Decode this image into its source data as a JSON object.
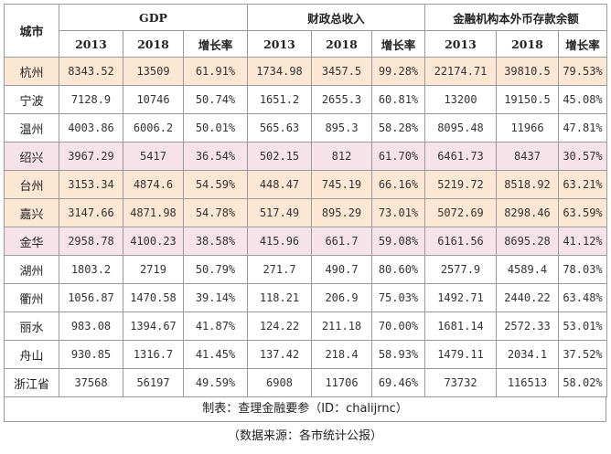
{
  "header": {
    "city": "城市",
    "groups": [
      "GDP",
      "财政总收入",
      "金融机构本外币存款余额"
    ],
    "subheaders": [
      "2013",
      "2018",
      "增长率",
      "2013",
      "2018",
      "增长率",
      "2013",
      "2018",
      "增长率"
    ]
  },
  "rows": [
    {
      "city": "杭州",
      "tint": "orange",
      "values": [
        "8343.52",
        "13509",
        "61.91%",
        "1734.98",
        "3457.5",
        "99.28%",
        "22174.71",
        "39810.5",
        "79.53%"
      ]
    },
    {
      "city": "宁波",
      "tint": "plain",
      "values": [
        "7128.9",
        "10746",
        "50.74%",
        "1651.2",
        "2655.3",
        "60.81%",
        "13200",
        "19150.5",
        "45.08%"
      ]
    },
    {
      "city": "温州",
      "tint": "plain",
      "values": [
        "4003.86",
        "6006.2",
        "50.01%",
        "565.63",
        "895.3",
        "58.28%",
        "8095.48",
        "11966",
        "47.81%"
      ]
    },
    {
      "city": "绍兴",
      "tint": "pink",
      "values": [
        "3967.29",
        "5417",
        "36.54%",
        "502.15",
        "812",
        "61.70%",
        "6461.73",
        "8437",
        "30.57%"
      ]
    },
    {
      "city": "台州",
      "tint": "orange",
      "values": [
        "3153.34",
        "4874.6",
        "54.59%",
        "448.47",
        "745.19",
        "66.16%",
        "5219.72",
        "8518.92",
        "63.21%"
      ]
    },
    {
      "city": "嘉兴",
      "tint": "orange",
      "values": [
        "3147.66",
        "4871.98",
        "54.78%",
        "517.49",
        "895.29",
        "73.01%",
        "5072.69",
        "8298.46",
        "63.59%"
      ]
    },
    {
      "city": "金华",
      "tint": "pink",
      "values": [
        "2958.78",
        "4100.23",
        "38.58%",
        "415.96",
        "661.7",
        "59.08%",
        "6161.56",
        "8695.28",
        "41.12%"
      ]
    },
    {
      "city": "湖州",
      "tint": "plain",
      "values": [
        "1803.2",
        "2719",
        "50.79%",
        "271.7",
        "490.7",
        "80.60%",
        "2577.9",
        "4589.4",
        "78.03%"
      ]
    },
    {
      "city": "衢州",
      "tint": "plain",
      "values": [
        "1056.87",
        "1470.58",
        "39.14%",
        "118.21",
        "206.9",
        "75.03%",
        "1492.71",
        "2440.22",
        "63.48%"
      ]
    },
    {
      "city": "丽水",
      "tint": "plain",
      "values": [
        "983.08",
        "1394.67",
        "41.87%",
        "124.22",
        "211.18",
        "70.00%",
        "1681.14",
        "2572.33",
        "53.01%"
      ]
    },
    {
      "city": "舟山",
      "tint": "plain",
      "values": [
        "930.85",
        "1316.7",
        "41.45%",
        "137.42",
        "218.4",
        "58.93%",
        "1479.11",
        "2034.1",
        "37.52%"
      ]
    },
    {
      "city": "浙江省",
      "tint": "plain",
      "values": [
        "37568",
        "56197",
        "49.59%",
        "6908",
        "11706",
        "69.46%",
        "73732",
        "116513",
        "58.02%"
      ]
    }
  ],
  "caption": "制表：查理金融要参（ID：chalijrnc）",
  "source": "（数据来源：各市统计公报）"
}
